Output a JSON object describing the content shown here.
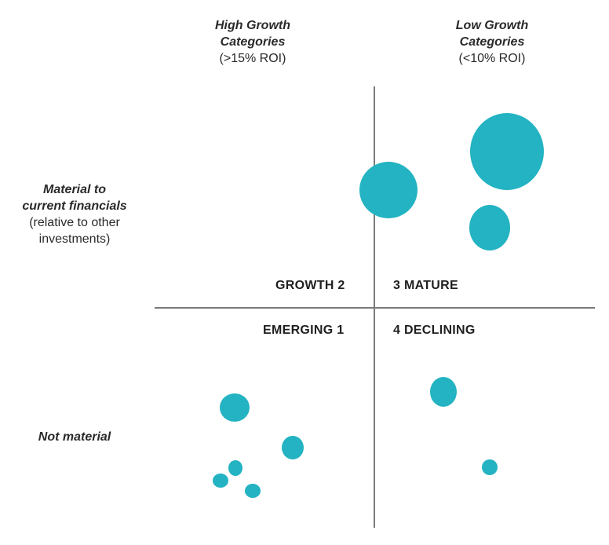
{
  "columns": {
    "high": {
      "title_line1": "High Growth",
      "title_line2": "Categories",
      "sub": "(>15% ROI)"
    },
    "low": {
      "title_line1": "Low Growth",
      "title_line2": "Categories",
      "sub": "(<10% ROI)"
    }
  },
  "rows": {
    "material": {
      "title_line1": "Material to",
      "title_line2": "current financials",
      "sub_line1": "(relative to other",
      "sub_line2": "investments)"
    },
    "not_material": {
      "title": "Not material"
    }
  },
  "quadrants": {
    "growth": "GROWTH 2",
    "mature": "3 MATURE",
    "emerging": "EMERGING 1",
    "declining": "4 DECLINING"
  },
  "colors": {
    "bubble": "#23b3c2",
    "axis": "#7a7a7a"
  },
  "bubbles": [
    {
      "quadrant": "growth-mature-boundary",
      "relative_size": "large"
    },
    {
      "quadrant": "mature",
      "relative_size": "very-large"
    },
    {
      "quadrant": "mature",
      "relative_size": "medium"
    },
    {
      "quadrant": "declining",
      "relative_size": "small"
    },
    {
      "quadrant": "declining",
      "relative_size": "tiny"
    },
    {
      "quadrant": "emerging",
      "relative_size": "small"
    },
    {
      "quadrant": "emerging",
      "relative_size": "small"
    },
    {
      "quadrant": "emerging",
      "relative_size": "tiny"
    },
    {
      "quadrant": "emerging",
      "relative_size": "tiny"
    },
    {
      "quadrant": "emerging",
      "relative_size": "tiny"
    }
  ]
}
